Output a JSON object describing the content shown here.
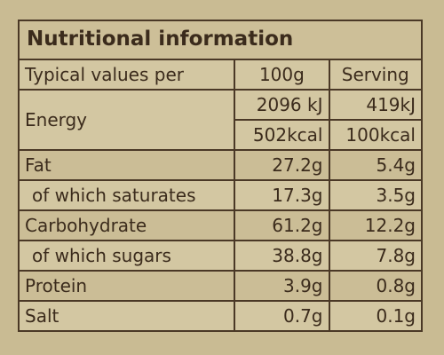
{
  "title": "Nutritional information",
  "table": {
    "header": [
      "Typical values per",
      "100g",
      "Serving"
    ],
    "rows": [
      {
        "label": "Energy",
        "per_100g": [
          "2096 kJ",
          "502kcal"
        ],
        "per_serving": [
          "419kJ",
          "100kcal"
        ]
      },
      {
        "label": "Fat",
        "per_100g": [
          "27.2g"
        ],
        "per_serving": [
          "5.4g"
        ]
      },
      {
        "label": "of which saturates",
        "per_100g": [
          "17.3g"
        ],
        "per_serving": [
          "3.5g"
        ],
        "sub": true
      },
      {
        "label": "Carbohydrate",
        "per_100g": [
          "61.2g"
        ],
        "per_serving": [
          "12.2g"
        ]
      },
      {
        "label": "of which sugars",
        "per_100g": [
          "38.8g"
        ],
        "per_serving": [
          "7.8g"
        ],
        "sub": true
      },
      {
        "label": "Protein",
        "per_100g": [
          "3.9g"
        ],
        "per_serving": [
          "0.8g"
        ]
      },
      {
        "label": "Salt",
        "per_100g": [
          "0.7g"
        ],
        "per_serving": [
          "0.1g"
        ]
      }
    ]
  }
}
